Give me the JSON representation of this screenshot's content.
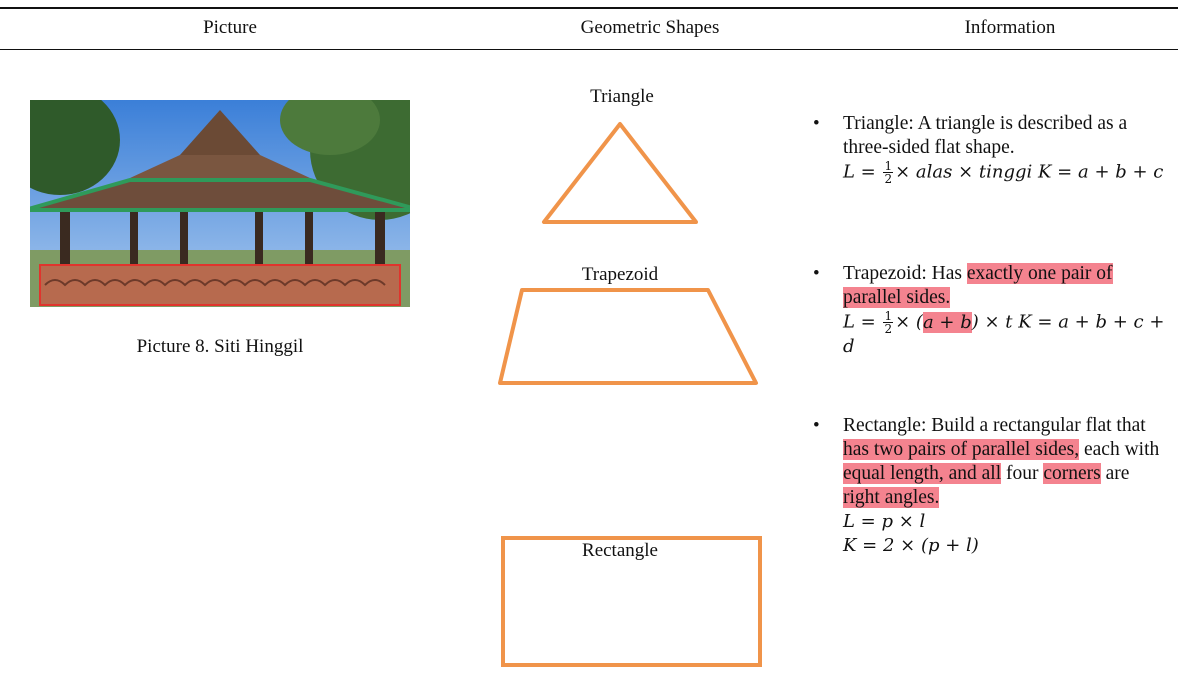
{
  "table": {
    "headers": [
      "Picture",
      "Geometric Shapes",
      "Information"
    ],
    "rows": [
      {
        "picture_caption": "Picture 8. Siti Hinggil",
        "shapes": [
          "Triangle",
          "Trapezoid",
          "Rectangle"
        ],
        "information": [
          {
            "paragraphs": [
              {
                "segments": [
                  {
                    "text": "Triangle: A triangle is described as a three-sided flat shape."
                  }
                ]
              },
              {
                "math": true,
                "segments": [
                  {
                    "text": "L = "
                  },
                  {
                    "numerator": "1",
                    "denominator": "2"
                  },
                  {
                    "text": "× alas × tinggi K = a + b + c"
                  }
                ]
              }
            ]
          },
          {
            "paragraphs": [
              {
                "segments": [
                  {
                    "text": "Trapezoid: Has "
                  },
                  {
                    "text": "exactly one pair of parallel sides.",
                    "highlight": true
                  }
                ]
              },
              {
                "math": true,
                "segments": [
                  {
                    "text": "L = "
                  },
                  {
                    "numerator": "1",
                    "denominator": "2"
                  },
                  {
                    "text": "× ("
                  },
                  {
                    "text": "a + b",
                    "highlight": true
                  },
                  {
                    "text": ") × t K = a + b + c + d"
                  }
                ]
              }
            ]
          },
          {
            "paragraphs": [
              {
                "segments": [
                  {
                    "text": "Rectangle: Build a rectangular flat that "
                  },
                  {
                    "text": "has two pairs of parallel sides,",
                    "highlight": true
                  },
                  {
                    "text": " each with "
                  },
                  {
                    "text": "equal length, and all",
                    "highlight": true
                  },
                  {
                    "text": " four "
                  },
                  {
                    "text": "corners",
                    "highlight": true
                  },
                  {
                    "text": " are "
                  },
                  {
                    "text": "right angles.",
                    "highlight": true
                  }
                ]
              },
              {
                "math": true,
                "segments": [
                  {
                    "text": "L = p × l"
                  }
                ]
              },
              {
                "math": true,
                "segments": [
                  {
                    "text": "K = 2 × (p + l)"
                  }
                ]
              }
            ]
          }
        ]
      }
    ]
  }
}
